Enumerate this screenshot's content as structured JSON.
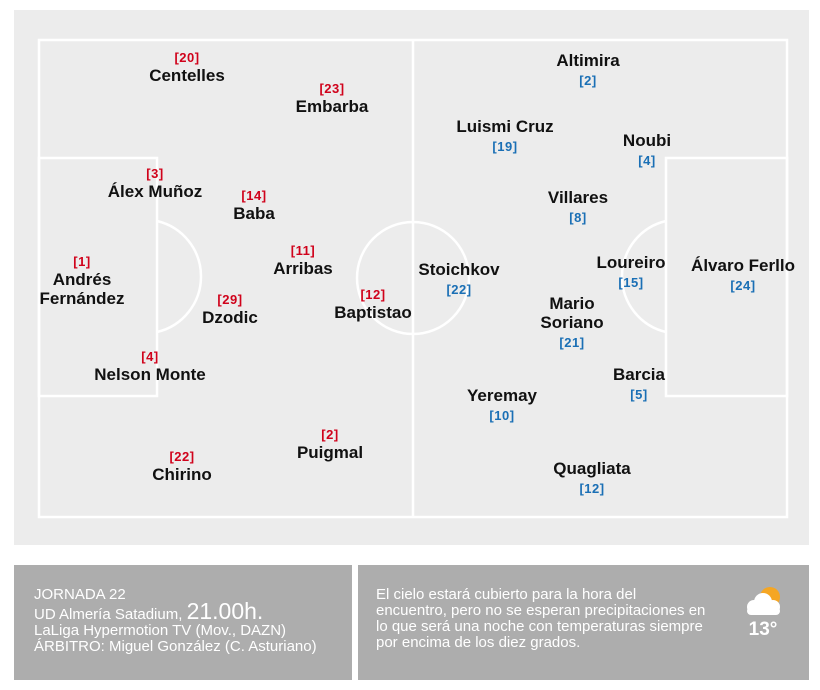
{
  "home_team": {
    "players": [
      {
        "number": "[20]",
        "name": "Centelles"
      },
      {
        "number": "[23]",
        "name": "Embarba"
      },
      {
        "number": "[3]",
        "name": "Álex Muñoz"
      },
      {
        "number": "[14]",
        "name": "Baba"
      },
      {
        "number": "[1]",
        "name": "Andrés",
        "name2": "Fernández"
      },
      {
        "number": "[11]",
        "name": "Arribas"
      },
      {
        "number": "[29]",
        "name": "Dzodic"
      },
      {
        "number": "[12]",
        "name": "Baptistao"
      },
      {
        "number": "[4]",
        "name": "Nelson Monte"
      },
      {
        "number": "[2]",
        "name": "Puigmal"
      },
      {
        "number": "[22]",
        "name": "Chirino"
      }
    ]
  },
  "away_team": {
    "players": [
      {
        "name": "Altimira",
        "number": "[2]"
      },
      {
        "name": "Luismi Cruz",
        "number": "[19]"
      },
      {
        "name": "Noubi",
        "number": "[4]"
      },
      {
        "name": "Villares",
        "number": "[8]"
      },
      {
        "name": "Stoichkov",
        "number": "[22]"
      },
      {
        "name": "Loureiro",
        "number": "[15]"
      },
      {
        "name": "Álvaro Ferllo",
        "number": "[24]"
      },
      {
        "name": "Mario",
        "name2": "Soriano",
        "number": "[21]"
      },
      {
        "name": "Barcia",
        "number": "[5]"
      },
      {
        "name": "Yeremay",
        "number": "[10]"
      },
      {
        "name": "Quagliata",
        "number": "[12]"
      }
    ]
  },
  "match_info": {
    "round": "JORNADA 22",
    "stadium": "UD Almería Satadium,",
    "time": "21.00h.",
    "tv": "LaLiga Hypermotion TV (Mov., DAZN)",
    "referee": "ÁRBITRO: Miguel González (C. Asturiano)"
  },
  "weather": {
    "forecast": "El cielo estará cubierto para la hora del encuentro, pero no se esperan precipitaciones en lo que será una noche con temperaturas siempre por encima de los diez grados.",
    "temperature": "13°",
    "icon": "partly-cloudy-icon",
    "sun_color": "#f5a623"
  },
  "colors": {
    "home_number": "#d0021b",
    "away_number": "#1a6fb5",
    "pitch": "#ececec",
    "info_panel": "#adadad"
  }
}
